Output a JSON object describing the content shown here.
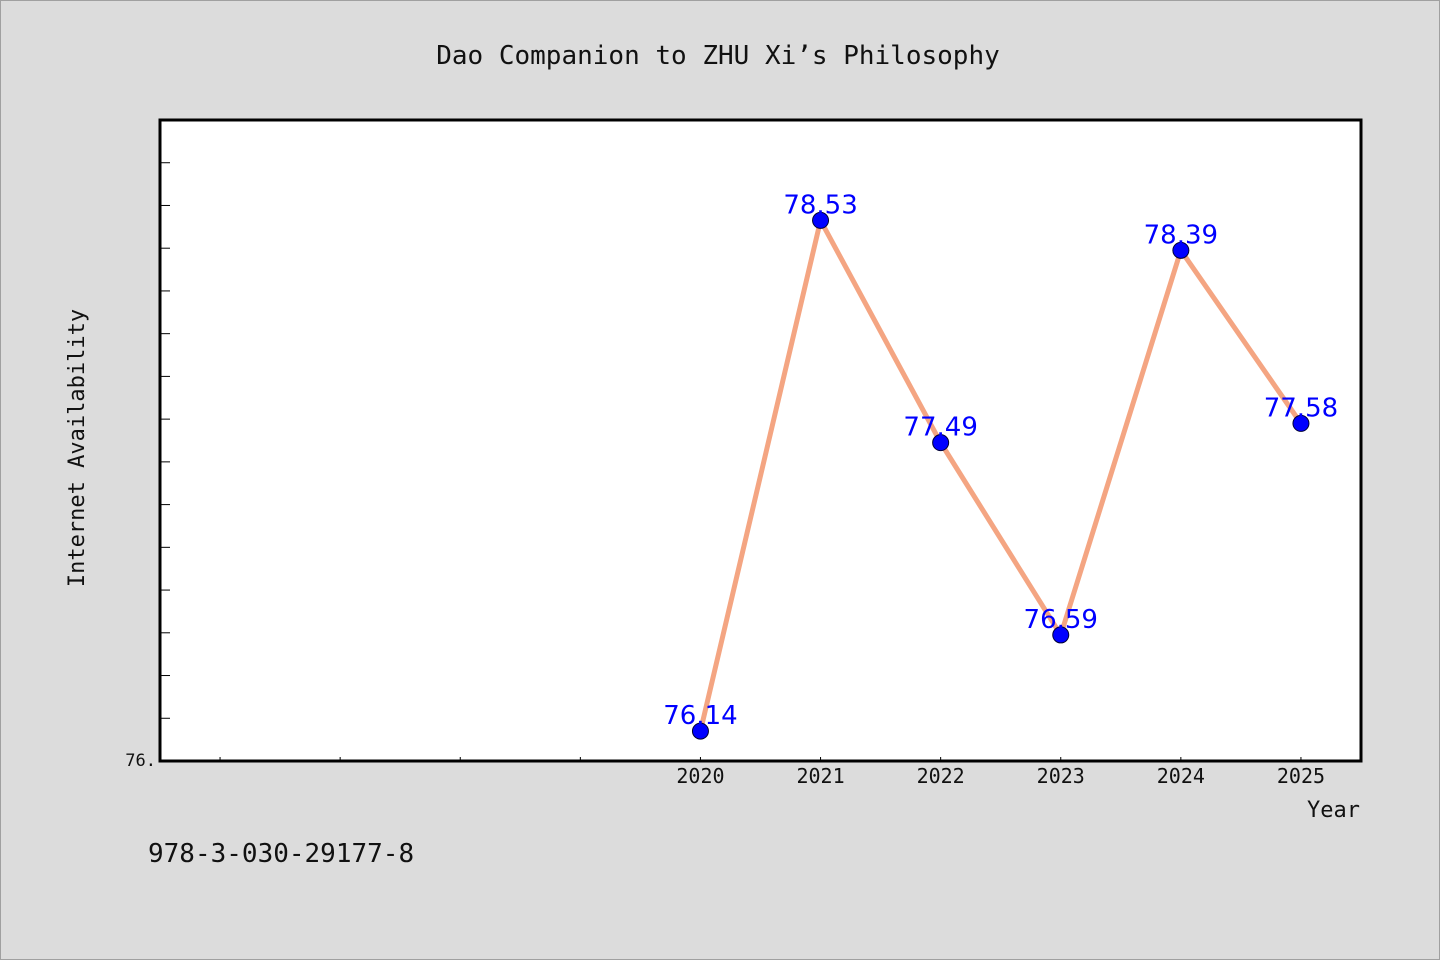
{
  "chart_data": {
    "type": "line",
    "title": "Dao Companion to ZHU Xi’s Philosophy",
    "xlabel": "Year",
    "ylabel": "Internet Availability",
    "x": [
      "2020",
      "2021",
      "2022",
      "2023",
      "2024",
      "2025"
    ],
    "values": [
      76.14,
      78.53,
      77.49,
      76.59,
      78.39,
      77.58
    ],
    "data_labels": [
      "76.14",
      "78.53",
      "77.49",
      "76.59",
      "78.39",
      "77.58"
    ],
    "xlim": [
      2015.5,
      2025.5
    ],
    "ylim": [
      76.0,
      79.0
    ],
    "y_tick_label": "76.",
    "grid": false,
    "legend": "none",
    "colors": {
      "line": "#f4a582",
      "marker": "#0000ff",
      "label": "#0000ff",
      "plot_bg": "#ffffff",
      "page_bg": "#dcdcdc"
    }
  },
  "footnote": "978-3-030-29177-8"
}
